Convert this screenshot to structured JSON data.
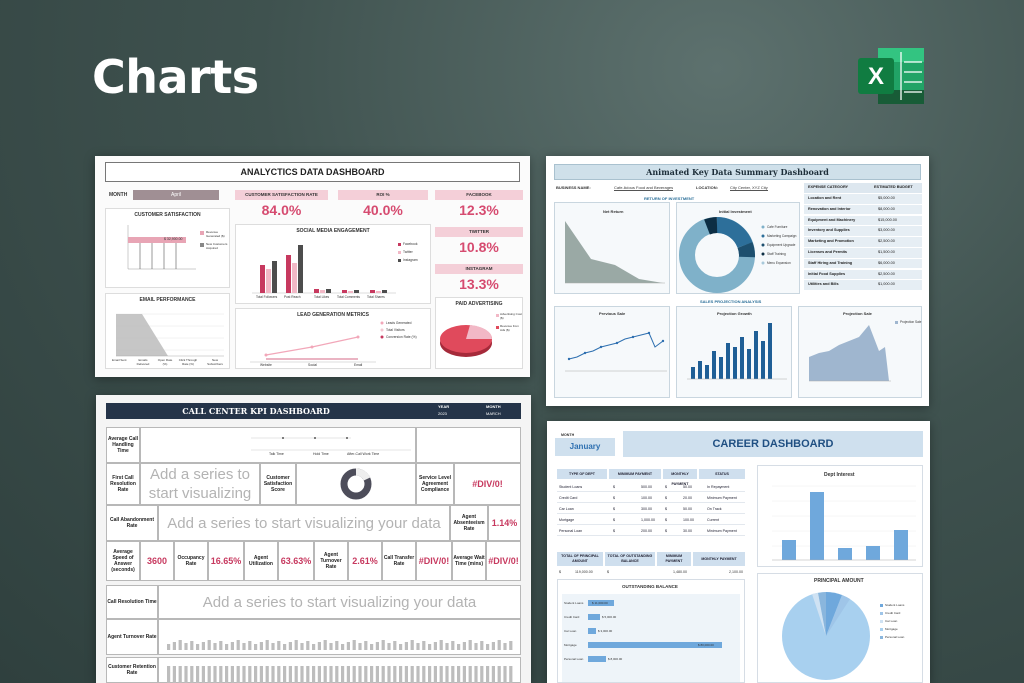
{
  "hero": {
    "title": "Charts",
    "excel_letter": "X"
  },
  "analytics": {
    "title": "ANALYCTICS DATA DASHBOARD",
    "month_label": "MONTH",
    "month_value": "April",
    "kpis": [
      {
        "head": "CUSTOMER SATISFACTION RATE",
        "value": "84.0%"
      },
      {
        "head": "ROI %",
        "value": "40.0%"
      },
      {
        "head": "FACEBOOK",
        "value": "12.3%"
      },
      {
        "head": "TWITTER",
        "value": "10.8%"
      },
      {
        "head": "INSTAGRAM",
        "value": "13.3%"
      }
    ],
    "boxes": {
      "customer_satisfaction": "CUSTOMER SATISFACTION",
      "social_media": "SOCIAL MEDIA ENGAGEMENT",
      "email": "EMAIL PERFORMANCE",
      "lead": "LEAD GENERATION METRICS",
      "paid": "PAID ADVERTISING"
    },
    "cs_bar_label": "$ 32,900.00",
    "cs_legend": [
      "Revenue Generated ($)",
      "New Customers Acquired"
    ],
    "social_legend": [
      "Facebook",
      "Twitter",
      "Instagram"
    ],
    "social_categories": [
      "Total Followers",
      "Post Reach",
      "Total Likes",
      "Total Comments",
      "Total Shares"
    ],
    "lead_legend": [
      "Leads Generated",
      "Total Visitors",
      "Conversion Rate (%)"
    ],
    "lead_categories": [
      "Website",
      "Social",
      "Email"
    ],
    "email_categories": [
      "Email Sent",
      "Emails Delivered",
      "Open Rate (%)",
      "Click Through Rate (%)",
      "New Subscribers"
    ],
    "paid_legend": [
      "Advertising Cost ($)",
      "Revenue from Ads ($)"
    ]
  },
  "summary": {
    "title": "Animated Key Data Summary Dashboard",
    "business_label": "BUSINESS NAME:",
    "business_value": "Cafe-licious Food and Beverages",
    "location_label": "LOCATION:",
    "location_value": "City Center, XYZ City",
    "roi_header": "RETURN OF INVESTMENT",
    "net_return_title": "Net Return",
    "initial_investment_title": "Initial Investment",
    "pie_legend": [
      "Cafe Furniture",
      "Marketing Campaign",
      "Equipment Upgrade",
      "Staff Training",
      "Menu Expansion"
    ],
    "sales_header": "SALES PROJECTION ANALYSIS",
    "previous_sale_title": "Previous Sale",
    "projection_growth_title": "Projection Growth",
    "projection_sale_title": "Projection Sale",
    "projection_legend": "Projection Sale",
    "expense_header": [
      "EXPENSE CATEGORY",
      "ESTIMATED BUDGET"
    ],
    "expenses": [
      [
        "Location and Rent",
        "$5,000.00"
      ],
      [
        "Renovation and Interior",
        "$8,000.00"
      ],
      [
        "Equipment and Machinery",
        "$15,000.00"
      ],
      [
        "Inventory and Supplies",
        "$3,000.00"
      ],
      [
        "Marketing and Promotion",
        "$2,500.00"
      ],
      [
        "Licenses and Permits",
        "$1,500.00"
      ],
      [
        "Staff Hiring and Training",
        "$6,000.00"
      ],
      [
        "Initial Food Supplies",
        "$2,500.00"
      ],
      [
        "Utilities and Bills",
        "$1,000.00"
      ]
    ]
  },
  "callcenter": {
    "title": "CALL CENTER KPI DASHBOARD",
    "year_label": "YEAR",
    "year_value": "2023",
    "month_label": "MONTH",
    "month_value": "MARCH",
    "average_handling": "Average Call Handling Time",
    "handling_categories": [
      "Talk Time",
      "Hold Time",
      "After-Call Work Time"
    ],
    "first_call": "First Call Resolution Rate",
    "placeholder_short": "Add a series to start visualizing",
    "customer_satisfaction": "Customer Satisfaction Score",
    "sla": "Service Level Agreement Compliance",
    "div0": "#DIV/0!",
    "abandonment": "Call Abandonment Rate",
    "placeholder_long": "Add a series to start visualizing your data",
    "absenteeism": "Agent Absenteeism Rate",
    "absenteeism_value": "1.14%",
    "row4": [
      {
        "label": "Average Speed of Answer (seconds)",
        "value": "3600"
      },
      {
        "label": "Occupancy Rate",
        "value": "16.65%"
      },
      {
        "label": "Agent Utilization",
        "value": "63.63%"
      },
      {
        "label": "Agent Turnover Rate",
        "value": "2.61%"
      },
      {
        "label": "Call Transfer Rate",
        "value": "#DIV/0!"
      },
      {
        "label": "Average Wait Time (mins)",
        "value": "#DIV/0!"
      }
    ],
    "resolution_time": "Call Resolution Time",
    "turnover": "Agent Turnover Rate",
    "retention": "Customer Retention Rate"
  },
  "career": {
    "month_label": "MONTH",
    "month_value": "January",
    "title": "CAREER DASHBOARD",
    "table_head": [
      "TYPE OF DEPT",
      "MINIMUM PAYMENT",
      "MONTHLY PAYMENT",
      "STATUS"
    ],
    "rows": [
      [
        "Student Loans",
        "$",
        "500.00",
        "$",
        "50.00",
        "In Repayment"
      ],
      [
        "Credit Card",
        "$",
        "100.00",
        "$",
        "20.00",
        "Minimum Payment"
      ],
      [
        "Car Loan",
        "$",
        "300.00",
        "$",
        "50.00",
        "On Track"
      ],
      [
        "Mortgage",
        "$",
        "1,000.00",
        "$",
        "100.00",
        "Current"
      ],
      [
        "Personal Loan",
        "$",
        "200.00",
        "$",
        "30.00",
        "Minimum Payment"
      ]
    ],
    "totals_head": [
      "TOTAL OF PRINCIPAL AMOUNT",
      "TOTAL OF OUTSTANDING BALANCE",
      "MINIMUM PAYMENT",
      "MONTHLY PAYMENT"
    ],
    "totals": [
      "$",
      "119,000.00",
      "$",
      "1,480.00",
      "2,100.00"
    ],
    "dept_interest_title": "Dept Interest",
    "outstanding_title": "OUTSTANDING BALANCE",
    "principal_title": "PRINCIPAL AMOUNT",
    "principal_legend": [
      "Student Loans",
      "Credit Card",
      "Car Loan",
      "Mortgage",
      "Personal Loan"
    ],
    "outstanding_labels": [
      "Student Loans",
      "Credit Card",
      "Car Loan",
      "Mortgage",
      "Personal Loan"
    ],
    "outstanding_values": [
      "$ 11,000.00",
      "$ 5,000.00",
      "$ 3,000.00",
      "$ 80,000.00",
      "$ 8,000.00"
    ]
  }
}
